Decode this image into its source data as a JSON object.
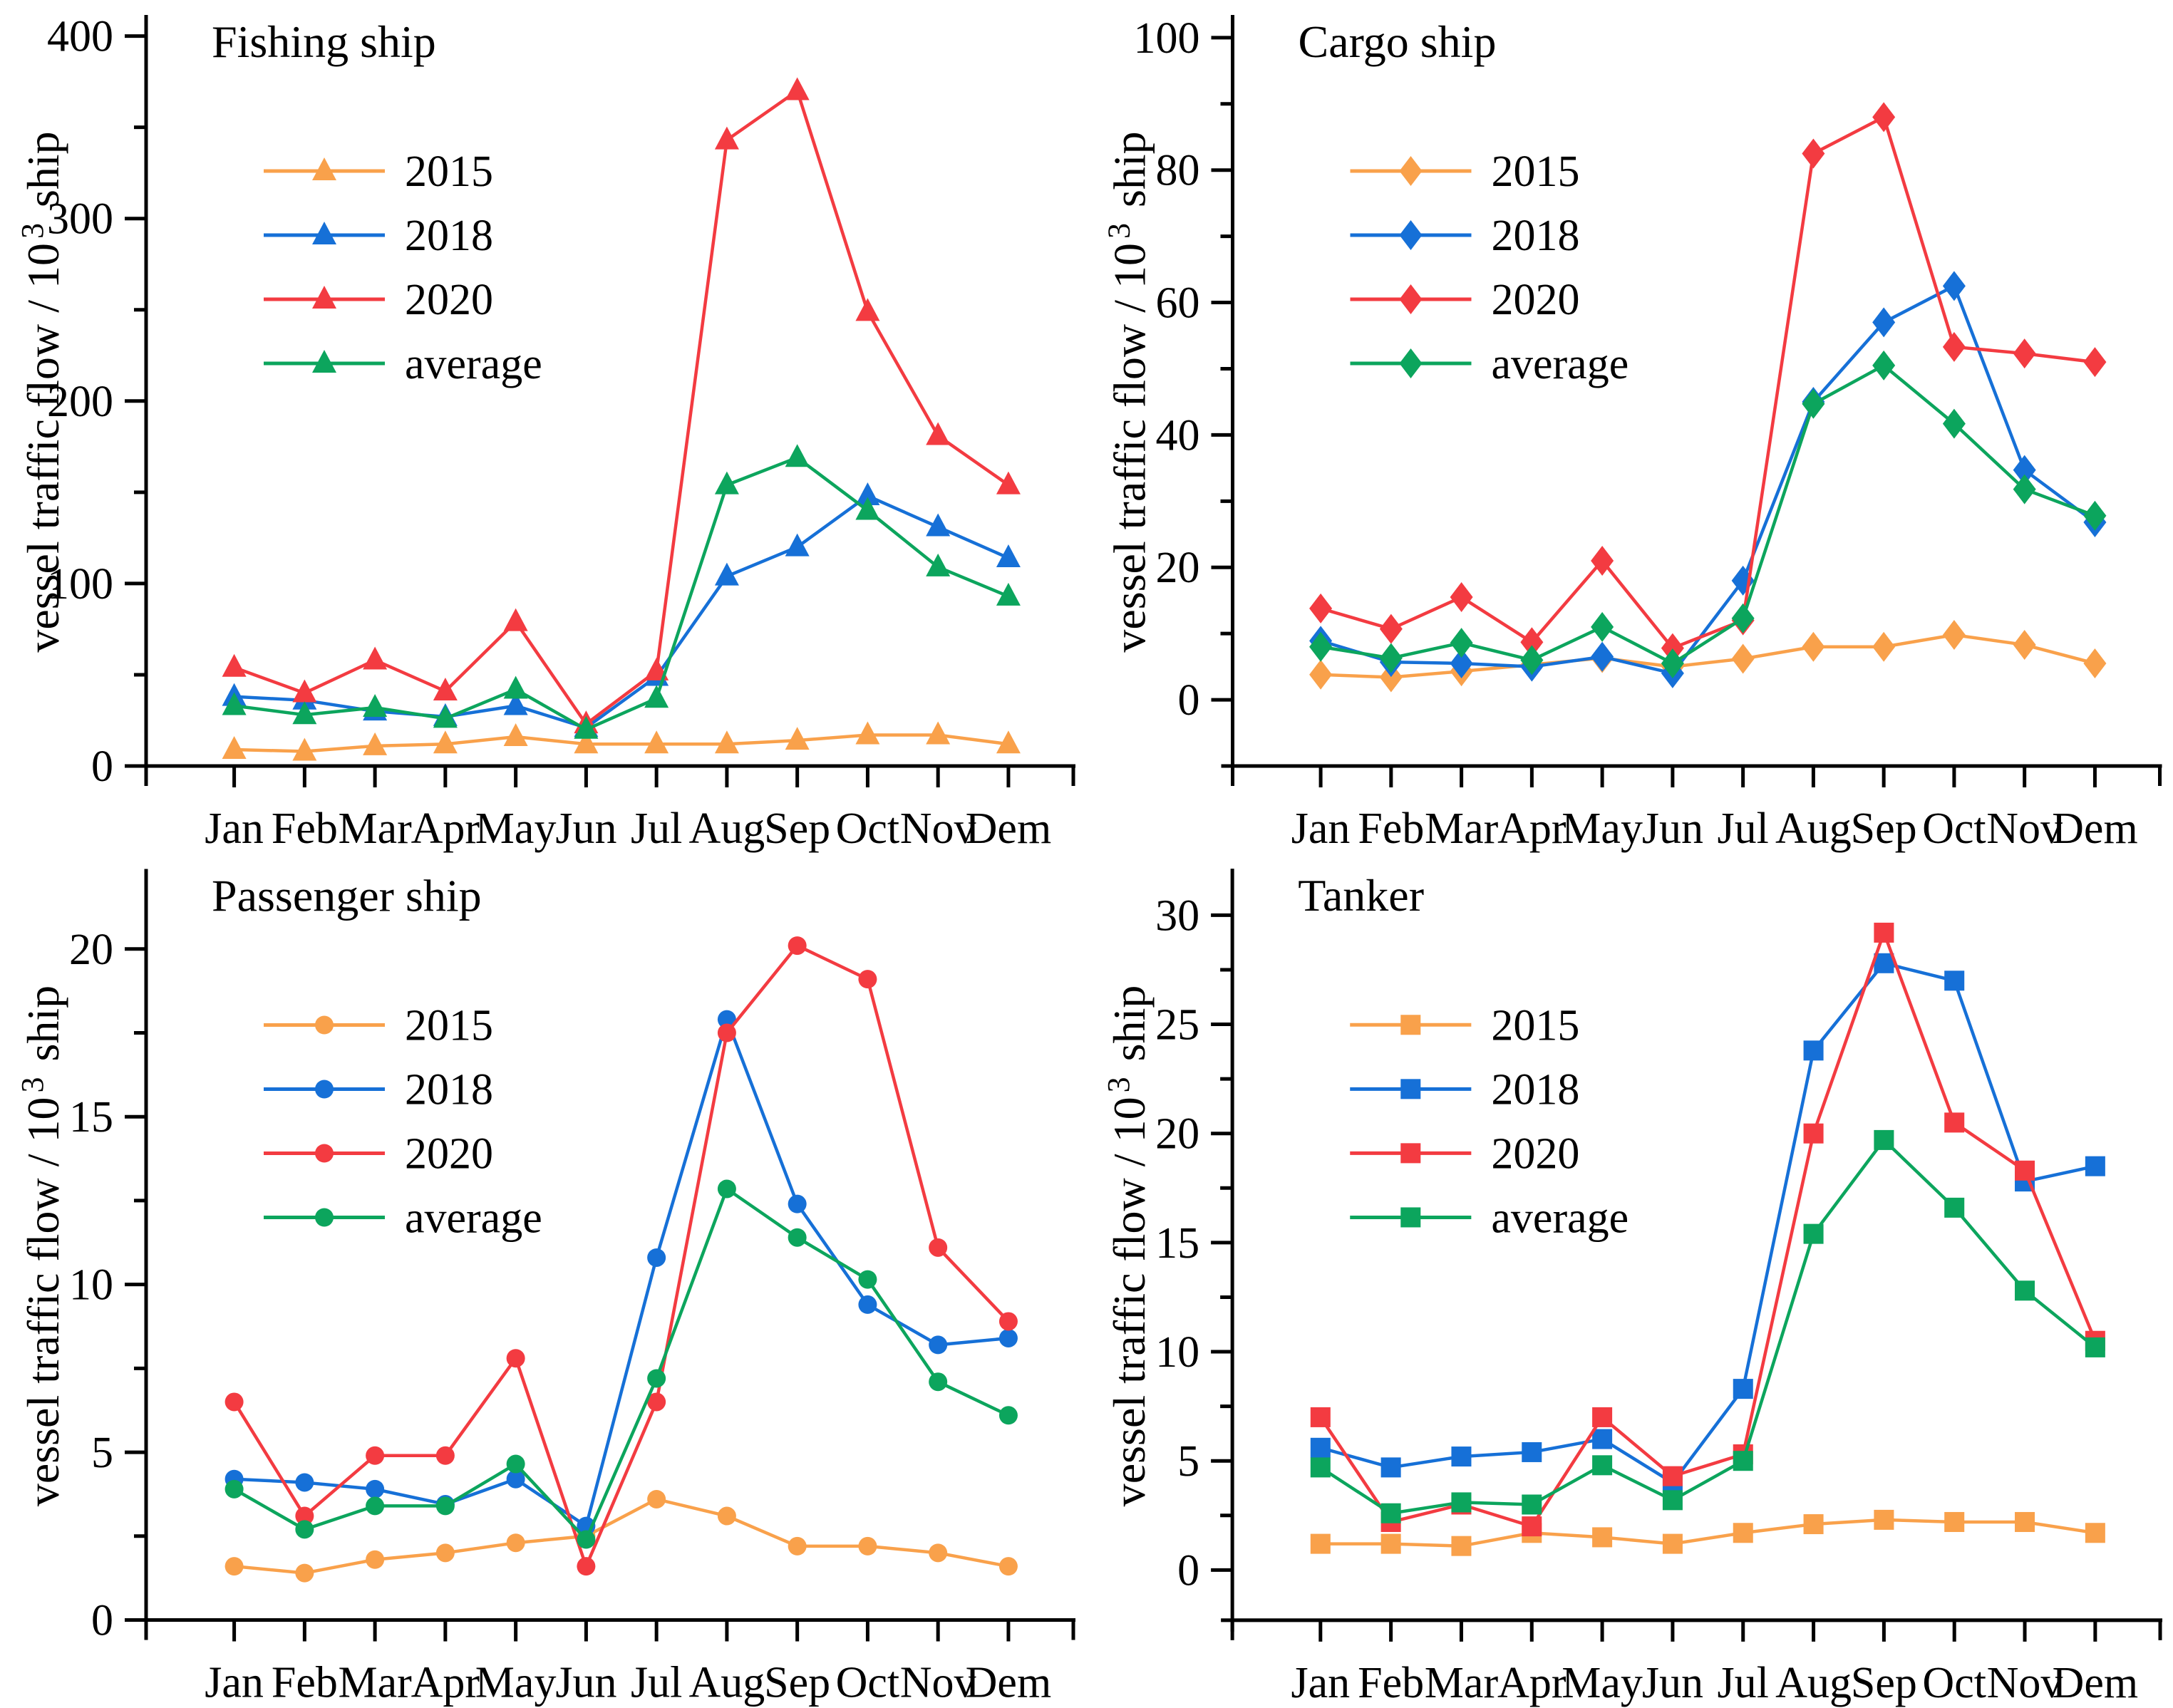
{
  "figure": {
    "background": "#ffffff",
    "y_axis_title": {
      "pre": "vessel traffic flow / 10",
      "sup": "3",
      "post": " ship"
    },
    "x_axis_months": [
      "Jan",
      "Feb",
      "Mar",
      "Apr",
      "May",
      "Jun",
      "Jul",
      "Aug",
      "Sep",
      "Oct",
      "Nov",
      "Dem"
    ],
    "legend_labels": [
      "2015",
      "2018",
      "2020",
      "average"
    ],
    "series_colors": {
      "2015": "#F9A14B",
      "2018": "#1670D7",
      "2020": "#F33B41",
      "average": "#0CA55D"
    }
  },
  "chart_data": [
    {
      "type": "line",
      "title": "Fishing ship",
      "marker": "triangle",
      "xlabel": "",
      "ylabel": "vessel traffic flow / 10^3 ship",
      "categories": [
        "Jan",
        "Feb",
        "Mar",
        "Apr",
        "May",
        "Jun",
        "Jul",
        "Aug",
        "Sep",
        "Oct",
        "Nov",
        "Dem"
      ],
      "yticks": [
        0,
        100,
        200,
        300,
        400
      ],
      "minor_tick_step": 50,
      "ylim": [
        0,
        410
      ],
      "grid": false,
      "legend_position": "upper-left",
      "series": [
        {
          "name": "2015",
          "color": "#F9A14B",
          "values": [
            9,
            8,
            11,
            12,
            16,
            12,
            12,
            12,
            14,
            17,
            17,
            12
          ]
        },
        {
          "name": "2018",
          "color": "#1670D7",
          "values": [
            38,
            36,
            30,
            27,
            33,
            21,
            49,
            104,
            120,
            148,
            131,
            114
          ]
        },
        {
          "name": "2020",
          "color": "#F33B41",
          "values": [
            54,
            40,
            58,
            41,
            79,
            23,
            52,
            343,
            370,
            249,
            181,
            154
          ]
        },
        {
          "name": "average",
          "color": "#0CA55D",
          "values": [
            33,
            28,
            32,
            26,
            42,
            20,
            37,
            154,
            169,
            140,
            109,
            93
          ]
        }
      ]
    },
    {
      "type": "line",
      "title": "Cargo ship",
      "marker": "diamond",
      "xlabel": "",
      "ylabel": "vessel traffic flow / 10^3 ship",
      "categories": [
        "Jan",
        "Feb",
        "Mar",
        "Apr",
        "May",
        "Jun",
        "Jul",
        "Aug",
        "Sep",
        "Oct",
        "Nov",
        "Dem"
      ],
      "yticks": [
        0,
        20,
        40,
        60,
        80,
        100
      ],
      "minor_tick_step": 10,
      "ylim": [
        -10,
        103
      ],
      "grid": false,
      "legend_position": "upper-left",
      "series": [
        {
          "name": "2015",
          "color": "#F9A14B",
          "values": [
            3.8,
            3.4,
            4.3,
            5.3,
            6.3,
            5.0,
            6.2,
            8.0,
            8.0,
            9.8,
            8.3,
            5.5
          ]
        },
        {
          "name": "2018",
          "color": "#1670D7",
          "values": [
            8.9,
            5.7,
            5.5,
            5.0,
            6.5,
            4.0,
            18.0,
            45.0,
            57.0,
            62.5,
            34.7,
            26.8
          ]
        },
        {
          "name": "2020",
          "color": "#F33B41",
          "values": [
            13.8,
            10.7,
            15.5,
            8.7,
            21.0,
            7.8,
            12.0,
            82.5,
            88.0,
            53.3,
            52.3,
            51.0
          ]
        },
        {
          "name": "average",
          "color": "#0CA55D",
          "values": [
            8.0,
            6.3,
            8.6,
            6.0,
            11.0,
            5.5,
            12.3,
            44.7,
            50.5,
            41.7,
            31.8,
            27.8
          ]
        }
      ]
    },
    {
      "type": "line",
      "title": "Passenger ship",
      "marker": "circle",
      "xlabel": "",
      "ylabel": "vessel traffic flow / 10^3 ship",
      "categories": [
        "Jan",
        "Feb",
        "Mar",
        "Apr",
        "May",
        "Jun",
        "Jul",
        "Aug",
        "Sep",
        "Oct",
        "Nov",
        "Dem"
      ],
      "yticks": [
        0,
        5,
        10,
        15,
        20
      ],
      "minor_tick_step": 2.5,
      "ylim": [
        0,
        22.3
      ],
      "grid": false,
      "legend_position": "upper-left",
      "series": [
        {
          "name": "2015",
          "color": "#F9A14B",
          "values": [
            1.6,
            1.4,
            1.8,
            2.0,
            2.3,
            2.5,
            3.6,
            3.1,
            2.2,
            2.2,
            2.0,
            1.6
          ]
        },
        {
          "name": "2018",
          "color": "#1670D7",
          "values": [
            4.2,
            4.1,
            3.9,
            3.45,
            4.2,
            2.8,
            10.8,
            17.9,
            12.4,
            9.4,
            8.2,
            8.4
          ]
        },
        {
          "name": "2020",
          "color": "#F33B41",
          "values": [
            6.5,
            3.1,
            4.9,
            4.9,
            7.8,
            1.6,
            6.5,
            17.5,
            20.1,
            19.1,
            11.1,
            8.9
          ]
        },
        {
          "name": "average",
          "color": "#0CA55D",
          "values": [
            3.9,
            2.7,
            3.4,
            3.4,
            4.65,
            2.4,
            7.2,
            12.85,
            11.4,
            10.15,
            7.1,
            6.1
          ]
        }
      ]
    },
    {
      "type": "line",
      "title": "Tanker",
      "marker": "square",
      "xlabel": "",
      "ylabel": "vessel traffic flow / 10^3 ship",
      "categories": [
        "Jan",
        "Feb",
        "Mar",
        "Apr",
        "May",
        "Jun",
        "Jul",
        "Aug",
        "Sep",
        "Oct",
        "Nov",
        "Dem"
      ],
      "yticks": [
        0,
        5,
        10,
        15,
        20,
        25,
        30
      ],
      "minor_tick_step": 2.5,
      "ylim": [
        -2.3,
        32
      ],
      "grid": false,
      "legend_position": "upper-left",
      "series": [
        {
          "name": "2015",
          "color": "#F9A14B",
          "values": [
            1.2,
            1.2,
            1.1,
            1.7,
            1.5,
            1.2,
            1.7,
            2.1,
            2.3,
            2.2,
            2.2,
            1.7
          ]
        },
        {
          "name": "2018",
          "color": "#1670D7",
          "values": [
            5.6,
            4.7,
            5.2,
            5.4,
            6.0,
            4.0,
            8.3,
            23.8,
            27.8,
            27.0,
            17.8,
            18.5
          ]
        },
        {
          "name": "2020",
          "color": "#F33B41",
          "values": [
            7.0,
            2.2,
            3.0,
            2.0,
            7.0,
            4.3,
            5.3,
            20.0,
            29.2,
            20.5,
            18.3,
            10.5
          ]
        },
        {
          "name": "average",
          "color": "#0CA55D",
          "values": [
            4.7,
            2.6,
            3.1,
            3.0,
            4.8,
            3.2,
            5.0,
            15.4,
            19.7,
            16.6,
            12.8,
            10.2
          ]
        }
      ]
    }
  ]
}
